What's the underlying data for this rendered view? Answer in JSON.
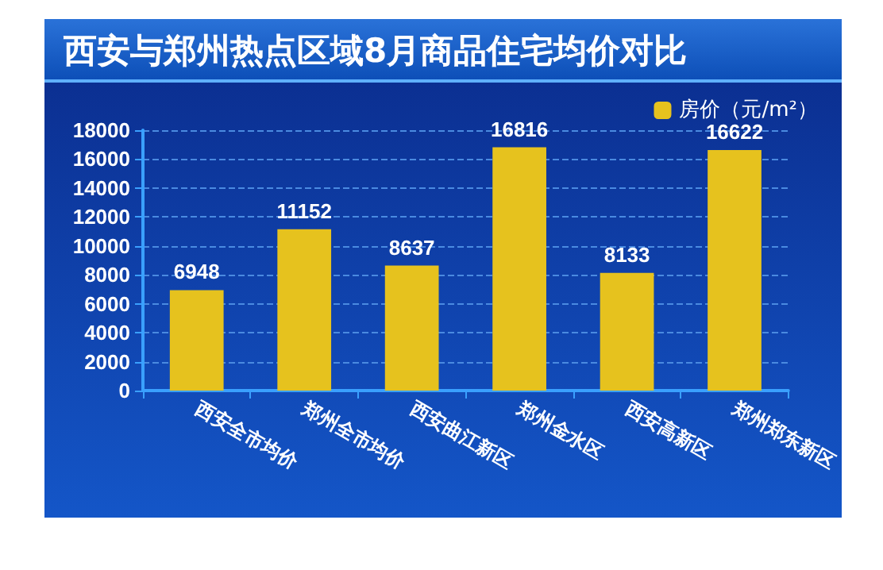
{
  "chart_data": {
    "type": "bar",
    "title": "西安与郑州热点区域8月商品住宅均价对比",
    "categories": [
      "西安全市均价",
      "郑州全市均价",
      "西安曲江新区",
      "郑州金水区",
      "西安高新区",
      "郑州郑东新区"
    ],
    "series": [
      {
        "name": "房价（元/m²）",
        "color": "#e6c21e",
        "values": [
          6948,
          11152,
          8637,
          16816,
          8133,
          16622
        ]
      }
    ],
    "ylim": [
      0,
      18000
    ],
    "yticks": [
      0,
      2000,
      4000,
      6000,
      8000,
      10000,
      12000,
      14000,
      16000,
      18000
    ],
    "grid": "y",
    "legend": "top right",
    "data_labels": true
  }
}
